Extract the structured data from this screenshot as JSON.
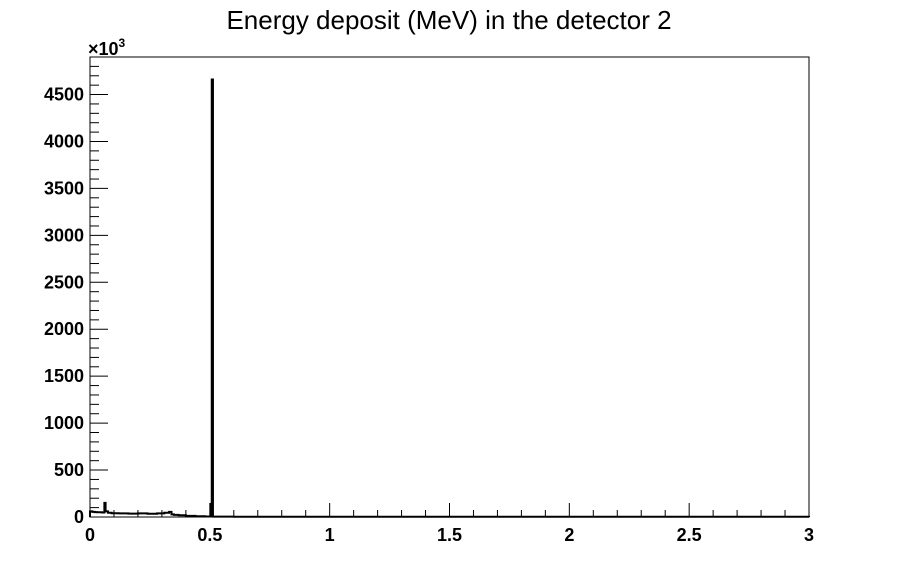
{
  "chart_data": {
    "type": "histogram",
    "title": "Energy deposit (MeV) in the detector 2",
    "xlabel": "",
    "ylabel": "",
    "xlim": [
      0,
      3
    ],
    "ylim": [
      0,
      4900
    ],
    "y_multiplier": "×10",
    "y_multiplier_exp": "3",
    "x_ticks": [
      {
        "value": 0,
        "label": "0"
      },
      {
        "value": 0.5,
        "label": "0.5"
      },
      {
        "value": 1,
        "label": "1"
      },
      {
        "value": 1.5,
        "label": "1.5"
      },
      {
        "value": 2,
        "label": "2"
      },
      {
        "value": 2.5,
        "label": "2.5"
      },
      {
        "value": 3,
        "label": "3"
      }
    ],
    "y_ticks": [
      {
        "value": 0,
        "label": "0"
      },
      {
        "value": 500,
        "label": "500"
      },
      {
        "value": 1000,
        "label": "1000"
      },
      {
        "value": 1500,
        "label": "1500"
      },
      {
        "value": 2000,
        "label": "2000"
      },
      {
        "value": 2500,
        "label": "2500"
      },
      {
        "value": 3000,
        "label": "3000"
      },
      {
        "value": 3500,
        "label": "3500"
      },
      {
        "value": 4000,
        "label": "4000"
      },
      {
        "value": 4500,
        "label": "4500"
      }
    ],
    "bins": [
      {
        "x0": 0.0,
        "x1": 0.01,
        "y": 60
      },
      {
        "x0": 0.01,
        "x1": 0.02,
        "y": 55
      },
      {
        "x0": 0.02,
        "x1": 0.03,
        "y": 52
      },
      {
        "x0": 0.03,
        "x1": 0.04,
        "y": 50
      },
      {
        "x0": 0.04,
        "x1": 0.05,
        "y": 50
      },
      {
        "x0": 0.05,
        "x1": 0.06,
        "y": 48
      },
      {
        "x0": 0.06,
        "x1": 0.065,
        "y": 150
      },
      {
        "x0": 0.065,
        "x1": 0.075,
        "y": 60
      },
      {
        "x0": 0.075,
        "x1": 0.09,
        "y": 45
      },
      {
        "x0": 0.09,
        "x1": 0.12,
        "y": 40
      },
      {
        "x0": 0.12,
        "x1": 0.16,
        "y": 38
      },
      {
        "x0": 0.16,
        "x1": 0.2,
        "y": 36
      },
      {
        "x0": 0.2,
        "x1": 0.24,
        "y": 38
      },
      {
        "x0": 0.24,
        "x1": 0.28,
        "y": 35
      },
      {
        "x0": 0.28,
        "x1": 0.31,
        "y": 38
      },
      {
        "x0": 0.31,
        "x1": 0.33,
        "y": 45
      },
      {
        "x0": 0.33,
        "x1": 0.34,
        "y": 55
      },
      {
        "x0": 0.34,
        "x1": 0.35,
        "y": 28
      },
      {
        "x0": 0.35,
        "x1": 0.37,
        "y": 22
      },
      {
        "x0": 0.37,
        "x1": 0.4,
        "y": 18
      },
      {
        "x0": 0.4,
        "x1": 0.44,
        "y": 12
      },
      {
        "x0": 0.44,
        "x1": 0.48,
        "y": 8
      },
      {
        "x0": 0.48,
        "x1": 0.505,
        "y": 5
      },
      {
        "x0": 0.505,
        "x1": 0.508,
        "y": 140
      },
      {
        "x0": 0.508,
        "x1": 0.513,
        "y": 4660
      },
      {
        "x0": 0.513,
        "x1": 0.6,
        "y": 4
      },
      {
        "x0": 0.6,
        "x1": 3.0,
        "y": 3
      }
    ],
    "line_color": "#000000",
    "grid": false,
    "legend": "none"
  }
}
